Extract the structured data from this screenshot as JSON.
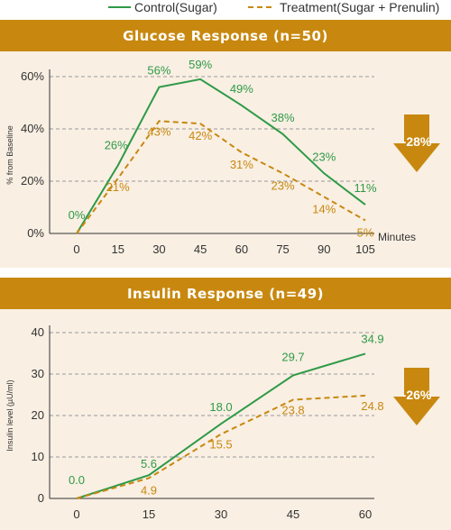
{
  "legend": {
    "control_label": "Control(Sugar)",
    "treatment_label": "Treatment(Sugar + Prenulin)"
  },
  "colors": {
    "control": "#2e9a47",
    "treatment": "#c8880f",
    "banner": "#c8880f",
    "panel": "#f9efe3"
  },
  "chart_data": [
    {
      "type": "line",
      "title": "Glucose Response (n=50)",
      "xlabel": "Minutes",
      "ylabel": "% from Baseline",
      "x": [
        0,
        15,
        30,
        45,
        60,
        75,
        90,
        105
      ],
      "yticks": [
        "0%",
        "20%",
        "40%",
        "60%"
      ],
      "ylim": [
        0,
        60
      ],
      "grid": true,
      "series": [
        {
          "name": "Control(Sugar)",
          "values": [
            0,
            26,
            56,
            59,
            49,
            38,
            23,
            11
          ],
          "labels": [
            "0%",
            "26%",
            "56%",
            "59%",
            "49%",
            "38%",
            "23%",
            "11%"
          ]
        },
        {
          "name": "Treatment(Sugar + Prenulin)",
          "values": [
            0,
            21,
            43,
            42,
            31,
            23,
            14,
            5
          ],
          "labels": [
            "",
            "21%",
            "43%",
            "42%",
            "31%",
            "23%",
            "14%",
            "5%"
          ]
        }
      ],
      "annotation": "-28%"
    },
    {
      "type": "line",
      "title": "Insulin Response (n=49)",
      "xlabel": "",
      "ylabel": "Insulin level (µU/ml)",
      "x": [
        0,
        15,
        30,
        45,
        60
      ],
      "yticks": [
        "0",
        "10",
        "20",
        "30",
        "40"
      ],
      "ylim": [
        0,
        40
      ],
      "grid": true,
      "series": [
        {
          "name": "Control(Sugar)",
          "values": [
            0,
            5.6,
            18.0,
            29.7,
            34.9
          ],
          "labels": [
            "0.0",
            "5.6",
            "18.0",
            "29.7",
            "34.9"
          ]
        },
        {
          "name": "Treatment(Sugar + Prenulin)",
          "values": [
            0,
            4.9,
            15.5,
            23.8,
            24.8
          ],
          "labels": [
            "",
            "4.9",
            "15.5",
            "23.8",
            "24.8"
          ]
        }
      ],
      "annotation": "-26%"
    }
  ]
}
